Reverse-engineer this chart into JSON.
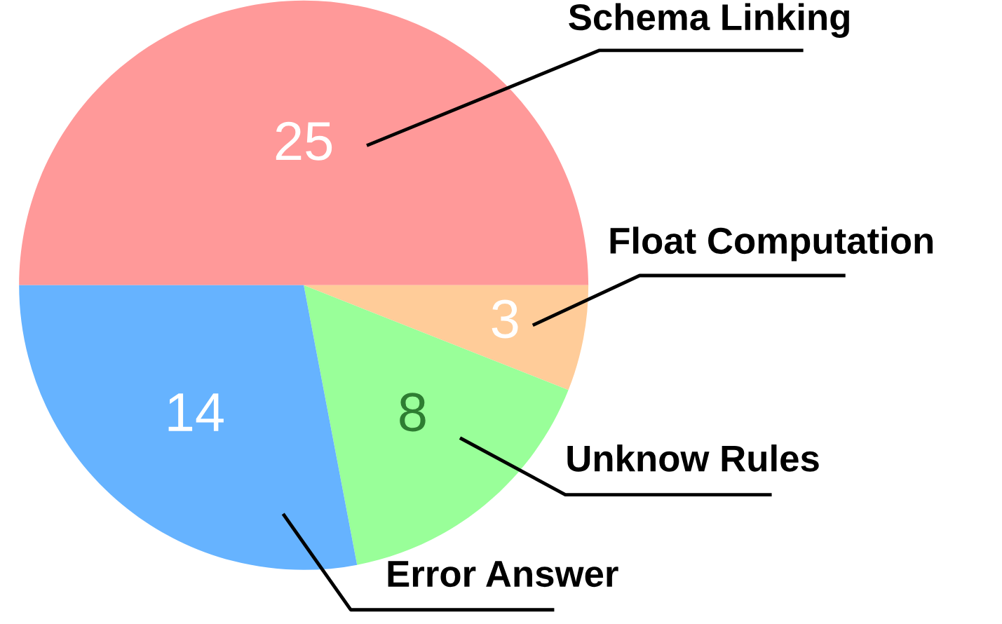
{
  "chart_data": {
    "type": "pie",
    "categories": [
      "Schema Linking",
      "Float Computation",
      "Unknow Rules",
      "Error Answer"
    ],
    "values": [
      25,
      3,
      8,
      14
    ],
    "colors": [
      "#ff9999",
      "#ffcc99",
      "#99ff99",
      "#66b3ff"
    ],
    "data_labels": true,
    "legend": false
  }
}
